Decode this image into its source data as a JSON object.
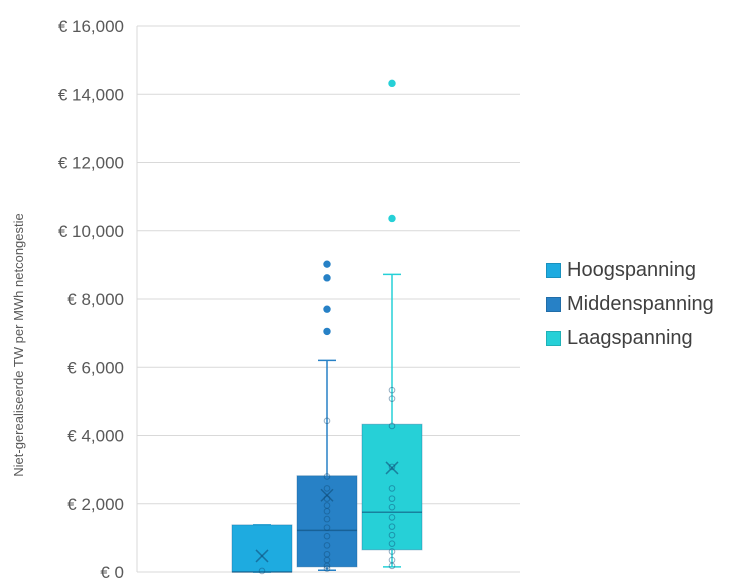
{
  "chart_data": {
    "type": "box",
    "ylabel": "Niet-gerealiseerde TW per MWh netcongestie",
    "ylim": [
      0,
      16000
    ],
    "yticks": [
      0,
      2000,
      4000,
      6000,
      8000,
      10000,
      12000,
      14000,
      16000
    ],
    "ytick_labels": [
      "€ 0",
      "€ 2,000",
      "€ 4,000",
      "€ 6,000",
      "€ 8,000",
      "€ 10,000",
      "€ 12,000",
      "€ 14,000",
      "€ 16,000"
    ],
    "grid": true,
    "legend_position": "right",
    "series": [
      {
        "name": "Hoogspanning",
        "color": "#1EABE0",
        "min": 0,
        "q1": 0,
        "median": 0,
        "q3": 1380,
        "max": 1380,
        "mean": 470,
        "points": [
          30
        ],
        "outliers": []
      },
      {
        "name": "Middenspanning",
        "color": "#2781C6",
        "min": 50,
        "q1": 150,
        "median": 1220,
        "q3": 2820,
        "max": 6200,
        "mean": 2250,
        "points": [
          100,
          180,
          350,
          520,
          780,
          1050,
          1300,
          1550,
          1780,
          1950,
          2150,
          2450,
          2800,
          4430
        ],
        "outliers": [
          7050,
          7700,
          8620,
          9020
        ]
      },
      {
        "name": "Laagspanning",
        "color": "#26D0D7",
        "min": 150,
        "q1": 650,
        "median": 1750,
        "q3": 4330,
        "max": 8720,
        "mean": 3050,
        "points": [
          180,
          350,
          600,
          830,
          1080,
          1330,
          1600,
          1900,
          2150,
          2450,
          3080,
          4280,
          5080,
          5330
        ],
        "outliers": [
          10360,
          14320
        ]
      }
    ]
  }
}
